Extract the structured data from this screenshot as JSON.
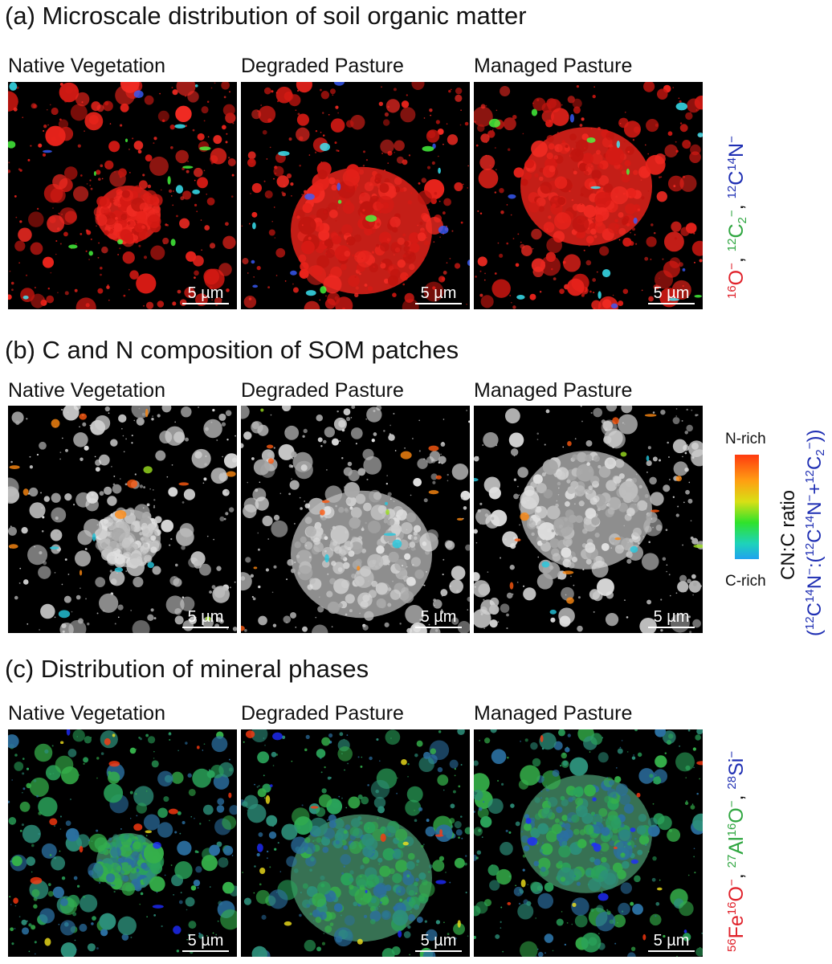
{
  "sections": [
    {
      "id": "a",
      "title": "(a) Microscale distribution of soil organic matter"
    },
    {
      "id": "b",
      "title": "(b) C and N composition of SOM patches"
    },
    {
      "id": "c",
      "title": "(c) Distribution of mineral phases"
    }
  ],
  "columns": [
    "Native Vegetation",
    "Degraded Pasture",
    "Managed Pasture"
  ],
  "scale_bar": "5 µm",
  "legend_a": {
    "ions": [
      {
        "mass": "16",
        "text": "O⁻",
        "color": "#e0212a"
      },
      {
        "sep": ", "
      },
      {
        "mass": "12",
        "text": "C₂⁻",
        "color": "#2fa640"
      },
      {
        "sep": ", "
      },
      {
        "mass": "12",
        "text": "C",
        "mass2": "14",
        "text2": "N⁻",
        "color": "#1f2fb3"
      }
    ]
  },
  "legend_b": {
    "top": "N-rich",
    "bottom": "C-rich",
    "title": "CN:C ratio",
    "formula": "(12C14N⁻:(12C14N⁻+12C2⁻))"
  },
  "legend_c": {
    "ions": [
      {
        "text": "56Fe16O⁻",
        "color": "#e0212a"
      },
      {
        "text": "27Al16O⁻",
        "color": "#2fa640"
      },
      {
        "text": "28Si⁻",
        "color": "#1f2fb3"
      }
    ]
  }
}
